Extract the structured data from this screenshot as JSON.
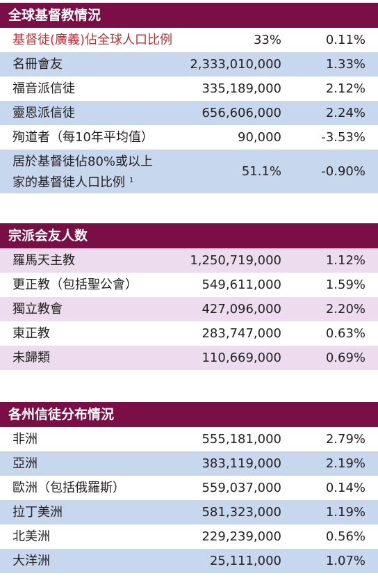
{
  "sections": [
    {
      "title": "全球基督教情況",
      "rows": [
        {
          "label": "基督徒(廣義)佔全球人口比例",
          "value": "33%",
          "rate": "0.11%"
        },
        {
          "label": "名冊會友",
          "value": "2,333,010,000",
          "rate": "1.33%"
        },
        {
          "label": "福音派信徒",
          "value": "335,189,000",
          "rate": "2.12%"
        },
        {
          "label": "靈恩派信徒",
          "value": "656,606,000",
          "rate": "2.24%"
        },
        {
          "label": "殉道者（每10年平均值）",
          "value": "90,000",
          "rate": "-3.53%"
        },
        {
          "label_line1": "居於基督徒佔80%或以上",
          "label_line2": "家的基督徒人口比例",
          "footnote": "1",
          "value": "51.1%",
          "rate": "-0.90%"
        }
      ]
    },
    {
      "title": "宗派会友人数",
      "rows": [
        {
          "label": "羅馬天主教",
          "value": "1,250,719,000",
          "rate": "1.12%"
        },
        {
          "label": "更正教（包括聖公會）",
          "value": "549,611,000",
          "rate": "1.59%"
        },
        {
          "label": "獨立教會",
          "value": "427,096,000",
          "rate": "2.20%"
        },
        {
          "label": "東正教",
          "value": "283,747,000",
          "rate": "0.63%"
        },
        {
          "label": "未歸類",
          "value": "110,669,000",
          "rate": "0.69%"
        }
      ]
    },
    {
      "title": "各州信徒分布情況",
      "rows": [
        {
          "label": "非洲",
          "value": "555,181,000",
          "rate": "2.79%"
        },
        {
          "label": "亞洲",
          "value": "383,119,000",
          "rate": "2.19%"
        },
        {
          "label": "歐洲（包括俄羅斯）",
          "value": "559,037,000",
          "rate": "0.14%"
        },
        {
          "label": "拉丁美洲",
          "value": "581,323,000",
          "rate": "1.19%"
        },
        {
          "label": "北美洲",
          "value": "229,239,000",
          "rate": "0.56%"
        },
        {
          "label": "大洋洲",
          "value": "25,111,000",
          "rate": "1.07%"
        }
      ]
    }
  ],
  "colors": {
    "header_bg": "#7a0f45",
    "row_blue": "#c7d7ee",
    "row_pink": "#ecdcee",
    "highlight_red": "#c72d30"
  }
}
